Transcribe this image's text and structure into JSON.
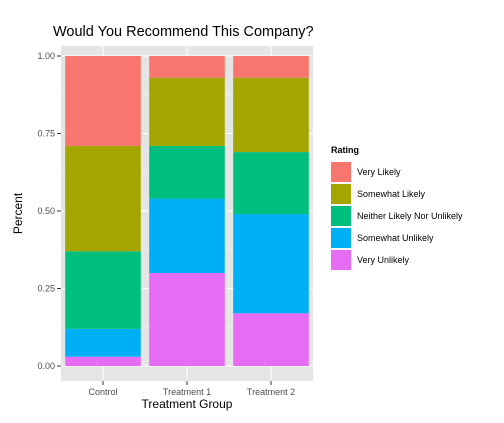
{
  "chart_data": {
    "type": "bar",
    "stacked": true,
    "title": "Would You Recommend This Company?",
    "xlabel": "Treatment Group",
    "ylabel": "Percent",
    "ylim": [
      0,
      1
    ],
    "yticks": [
      "0.00",
      "0.25",
      "0.50",
      "0.75",
      "1.00"
    ],
    "grid": true,
    "legend_position": "right",
    "categories": [
      "Control",
      "Treatment 1",
      "Treatment 2"
    ],
    "legend_title": "Rating",
    "series": [
      {
        "name": "Very Unlikely",
        "color": "#E76BF3",
        "values": [
          0.03,
          0.3,
          0.17
        ]
      },
      {
        "name": "Somewhat Unlikely",
        "color": "#00B0F6",
        "values": [
          0.09,
          0.24,
          0.32
        ]
      },
      {
        "name": "Neither Likely Nor Unlikely",
        "color": "#00BF7D",
        "values": [
          0.25,
          0.17,
          0.2
        ]
      },
      {
        "name": "Somewhat Likely",
        "color": "#A3A500",
        "values": [
          0.34,
          0.22,
          0.24
        ]
      },
      {
        "name": "Very Likely",
        "color": "#F8766D",
        "values": [
          0.29,
          0.07,
          0.07
        ]
      }
    ],
    "legend_order": [
      "Very Likely",
      "Somewhat Likely",
      "Neither Likely Nor Unlikely",
      "Somewhat Unlikely",
      "Very Unlikely"
    ],
    "panel_background": "#E5E5E5",
    "grid_color": "#FFFFFF"
  }
}
